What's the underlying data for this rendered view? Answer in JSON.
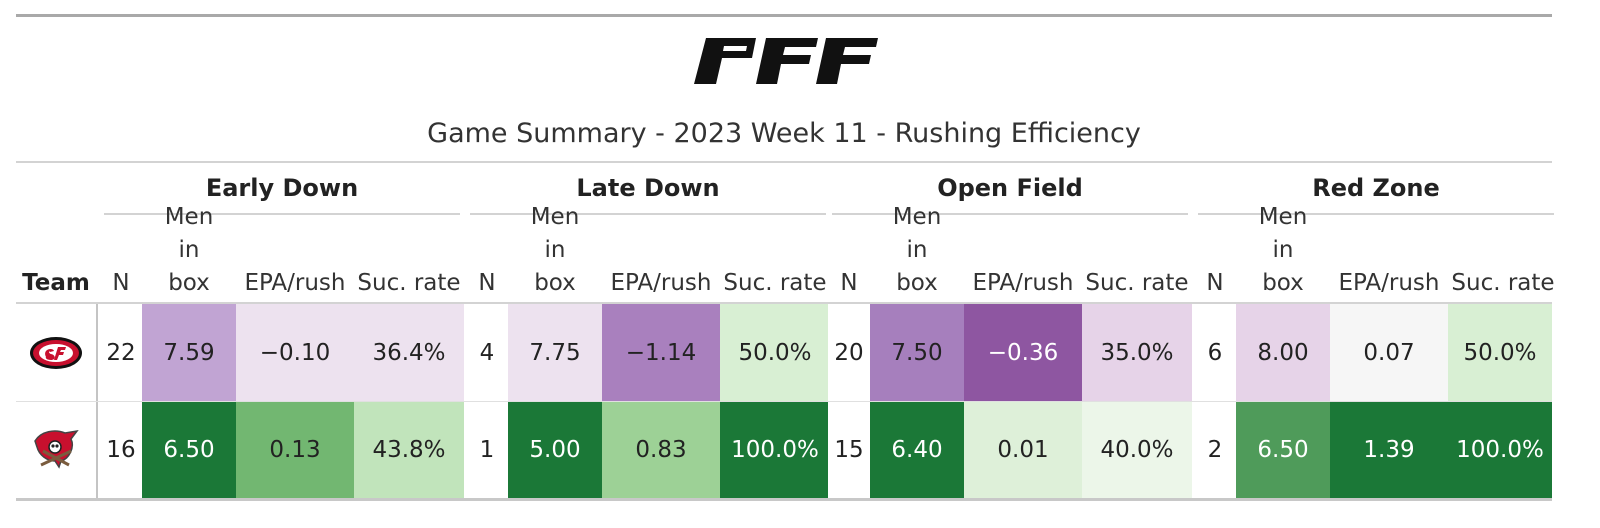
{
  "title": "Game Summary - 2023 Week 11 - Rushing Efficiency",
  "logo": {
    "text": "PFF"
  },
  "chart_data": {
    "type": "table",
    "title": "Game Summary - 2023 Week 11 - Rushing Efficiency",
    "team_header": "Team",
    "groups": [
      "Early Down",
      "Late Down",
      "Open Field",
      "Red Zone"
    ],
    "columns": [
      "N",
      "Men in box",
      "EPA/rush",
      "Suc. rate"
    ],
    "rows": [
      {
        "team_icon": "49ers-logo",
        "cells": [
          [
            "22",
            "7.59",
            "−0.10",
            "36.4%"
          ],
          [
            "4",
            "7.75",
            "−1.14",
            "50.0%"
          ],
          [
            "20",
            "7.50",
            "−0.36",
            "35.0%"
          ],
          [
            "6",
            "8.00",
            "0.07",
            "50.0%"
          ]
        ],
        "colors": [
          [
            "#ffffff",
            "#c1a4d3",
            "#ede2ef",
            "#ede2ef"
          ],
          [
            "#ffffff",
            "#ede2ef",
            "#a980be",
            "#d8efd3"
          ],
          [
            "#ffffff",
            "#a67fbd",
            "#8e56a1",
            "#e6d3e8"
          ],
          [
            "#ffffff",
            "#e6d3e8",
            "#f6f6f6",
            "#d8efd3"
          ]
        ]
      },
      {
        "team_icon": "buccaneers-logo",
        "cells": [
          [
            "16",
            "6.50",
            "0.13",
            "43.8%"
          ],
          [
            "1",
            "5.00",
            "0.83",
            "100.0%"
          ],
          [
            "15",
            "6.40",
            "0.01",
            "40.0%"
          ],
          [
            "2",
            "6.50",
            "1.39",
            "100.0%"
          ]
        ],
        "colors": [
          [
            "#ffffff",
            "#1b7837",
            "#72b771",
            "#c1e4bb"
          ],
          [
            "#ffffff",
            "#1b7837",
            "#9dd196",
            "#1b7837"
          ],
          [
            "#ffffff",
            "#1b7837",
            "#def0d9",
            "#ecf6e9"
          ],
          [
            "#ffffff",
            "#4f9b5a",
            "#1b7837",
            "#1b7837"
          ]
        ]
      }
    ]
  }
}
